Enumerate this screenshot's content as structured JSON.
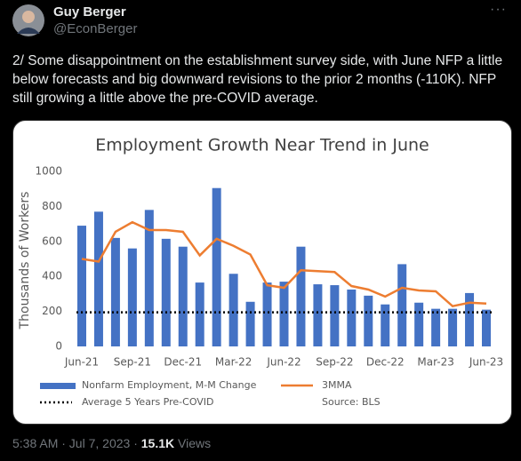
{
  "tweet": {
    "name": "Guy Berger",
    "handle": "@EconBerger",
    "text": "2/ Some disappointment on the establishment survey side, with June NFP a little below forecasts and big downward revisions to the prior 2 months (-110K).  NFP still growing a little above the pre-COVID average.",
    "time": "5:38 AM · Jul 7, 2023",
    "views_count": "15.1K",
    "views_label": "Views"
  },
  "chart_data": {
    "type": "bar",
    "title": "Employment Growth Near Trend in June",
    "y_label": "Thousands of Workers",
    "source": "Source: BLS",
    "categories": [
      "Jun-21",
      null,
      null,
      "Sep-21",
      null,
      null,
      "Dec-21",
      null,
      null,
      "Mar-22",
      null,
      null,
      "Jun-22",
      null,
      null,
      "Sep-22",
      null,
      null,
      "Dec-22",
      null,
      null,
      "Mar-23",
      null,
      null,
      "Jun-23"
    ],
    "series": [
      {
        "name": "Nonfarm Employment, M-M Change",
        "type": "bar",
        "color": "#4472c4",
        "values": [
          690,
          770,
          620,
          560,
          780,
          615,
          570,
          365,
          905,
          415,
          255,
          365,
          370,
          570,
          355,
          350,
          325,
          290,
          240,
          470,
          250,
          215,
          215,
          305,
          210
        ]
      },
      {
        "name": "3MMA",
        "type": "line",
        "color": "#ed7d31",
        "values": [
          500,
          485,
          655,
          710,
          665,
          665,
          655,
          520,
          615,
          575,
          525,
          350,
          335,
          435,
          430,
          425,
          345,
          325,
          285,
          335,
          320,
          315,
          230,
          250,
          245
        ]
      },
      {
        "name": "Average 5 Years Pre-COVID",
        "type": "hline",
        "color": "#000000",
        "value": 195
      }
    ],
    "ylim": [
      0,
      1000
    ],
    "yticks": [
      0,
      200,
      400,
      600,
      800,
      1000
    ],
    "grid": false
  }
}
